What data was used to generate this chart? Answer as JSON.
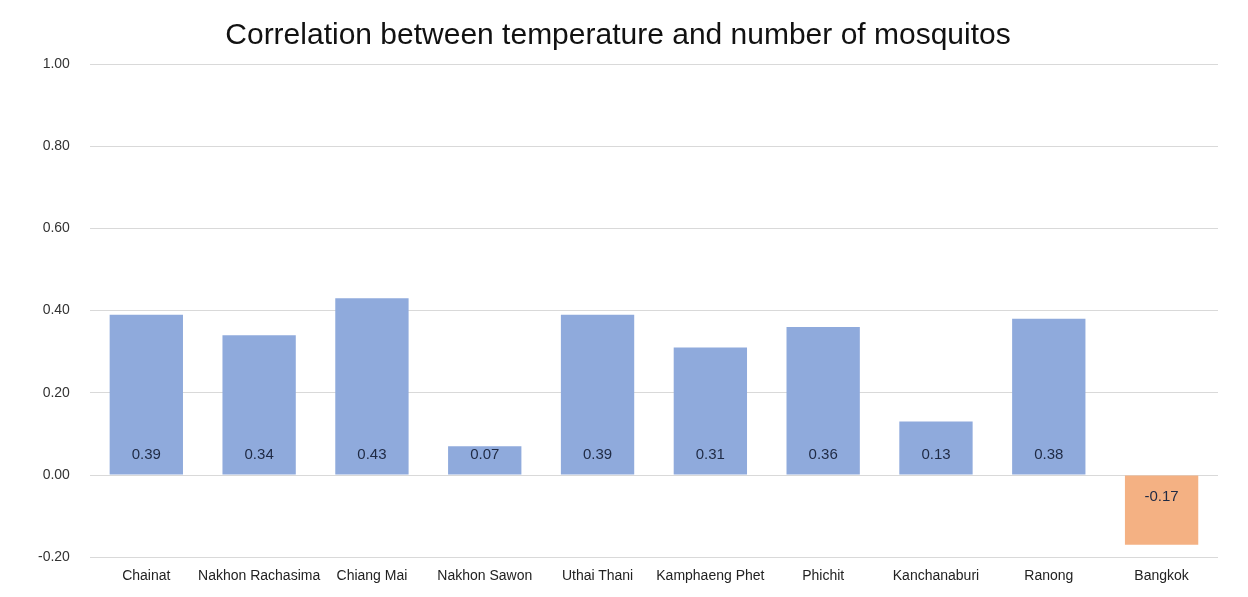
{
  "chart_data": {
    "type": "bar",
    "title": "Correlation between temperature and number of mosquitos",
    "categories": [
      "Chainat",
      "Nakhon Rachasima",
      "Chiang Mai",
      "Nakhon Sawon",
      "Uthai Thani",
      "Kamphaeng Phet",
      "Phichit",
      "Kanchanaburi",
      "Ranong",
      "Bangkok"
    ],
    "values": [
      0.39,
      0.34,
      0.43,
      0.07,
      0.39,
      0.31,
      0.36,
      0.13,
      0.38,
      -0.17
    ],
    "colors": [
      "#8faadc",
      "#8faadc",
      "#8faadc",
      "#8faadc",
      "#8faadc",
      "#8faadc",
      "#8faadc",
      "#8faadc",
      "#8faadc",
      "#f4b183"
    ],
    "value_labels": [
      "0.39",
      "0.34",
      "0.43",
      "0.07",
      "0.39",
      "0.31",
      "0.36",
      "0.13",
      "0.38",
      "-0.17"
    ],
    "ylim": [
      -0.2,
      1.0
    ],
    "yticks": [
      {
        "value": -0.2,
        "label": "-0.20"
      },
      {
        "value": 0,
        "label": "0.00"
      },
      {
        "value": 0.2,
        "label": "0.20"
      },
      {
        "value": 0.4,
        "label": "0.40"
      },
      {
        "value": 0.6,
        "label": "0.60"
      },
      {
        "value": 0.8,
        "label": "0.80"
      },
      {
        "value": 1.0,
        "label": "1.00"
      }
    ],
    "grid": "y",
    "legend": false
  }
}
